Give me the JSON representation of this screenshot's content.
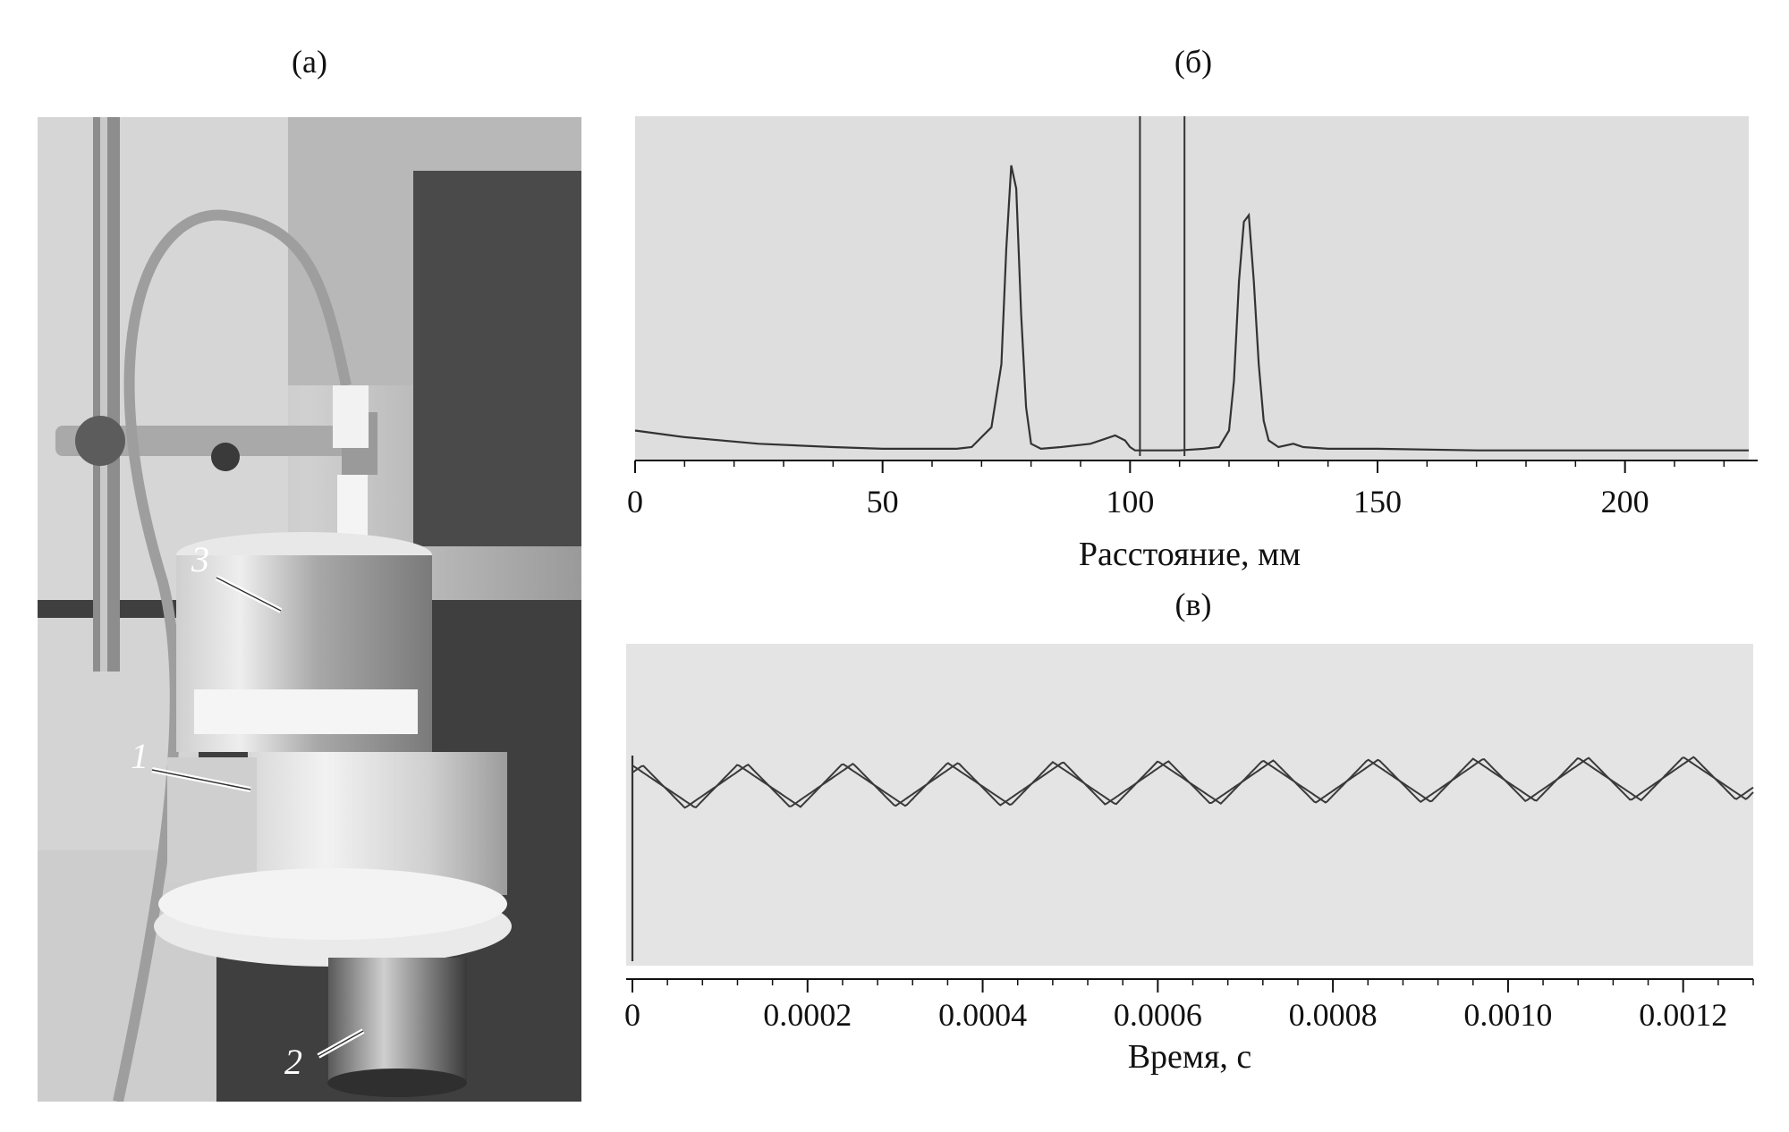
{
  "panels": {
    "a": {
      "label": "(а)"
    },
    "b": {
      "label": "(б)"
    },
    "c": {
      "label": "(в)"
    }
  },
  "photo": {
    "markers": [
      "3",
      "1",
      "2"
    ]
  },
  "chart_data": [
    {
      "type": "line",
      "xlabel": "Расстояние, мм",
      "ylabel": "",
      "xlim": [
        0,
        225
      ],
      "xticks": [
        0,
        50,
        100,
        150,
        200
      ],
      "xtick_labels": [
        "0",
        "50",
        "100",
        "150",
        "200"
      ],
      "background": "#dedede",
      "series": [
        {
          "x": [
            0,
            10,
            25,
            40,
            50,
            60,
            65,
            68,
            70,
            72,
            74,
            75,
            76,
            77,
            78,
            79,
            80,
            82,
            86,
            92,
            95,
            97,
            99,
            100,
            101,
            102,
            105,
            110,
            115,
            118,
            120,
            121,
            122,
            123,
            124,
            125,
            126,
            127,
            128,
            130,
            133,
            135,
            140,
            150,
            170,
            190,
            210,
            225
          ],
          "y": [
            0.05,
            0.03,
            0.01,
            0.0,
            -0.005,
            -0.005,
            -0.005,
            0.0,
            0.03,
            0.06,
            0.25,
            0.6,
            0.85,
            0.78,
            0.4,
            0.12,
            0.01,
            -0.005,
            0.0,
            0.01,
            0.025,
            0.035,
            0.02,
            0.0,
            -0.01,
            -0.01,
            -0.01,
            -0.01,
            -0.005,
            0.0,
            0.05,
            0.2,
            0.5,
            0.68,
            0.7,
            0.5,
            0.25,
            0.08,
            0.02,
            0.0,
            0.01,
            0.0,
            -0.005,
            -0.005,
            -0.01,
            -0.01,
            -0.01,
            -0.01
          ]
        }
      ],
      "vertical_lines": [
        102,
        111
      ]
    },
    {
      "type": "line",
      "xlabel": "Время, с",
      "ylabel": "",
      "xlim": [
        0,
        0.00128
      ],
      "xticks": [
        0,
        0.0002,
        0.0004,
        0.0006,
        0.0008,
        0.001,
        0.0012
      ],
      "xtick_labels": [
        "0",
        "0.0002",
        "0.0004",
        "0.0006",
        "0.0008",
        "0.0010",
        "0.0012"
      ],
      "background": "#e4e4e4",
      "series": [
        {
          "period": 0.00012,
          "phase": 0.0,
          "amplitude_low": 0.05,
          "amplitude_high": 0.45
        },
        {
          "period": 0.00012,
          "phase": 6e-05,
          "amplitude_low": 0.05,
          "amplitude_high": 0.45
        }
      ]
    }
  ]
}
